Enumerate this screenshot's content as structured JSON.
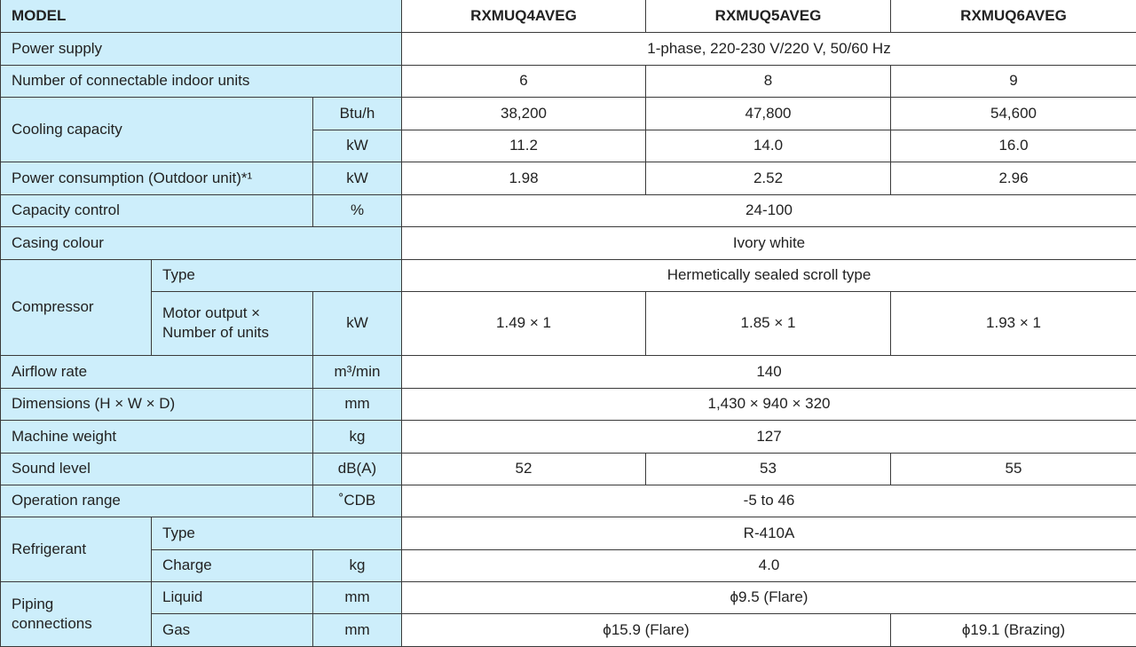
{
  "header": {
    "model": "MODEL",
    "models": [
      "RXMUQ4AVEG",
      "RXMUQ5AVEG",
      "RXMUQ6AVEG"
    ]
  },
  "rows": {
    "power_supply": {
      "label": "Power supply",
      "value": "1-phase, 220-230 V/220 V, 50/60 Hz"
    },
    "indoor_units": {
      "label": "Number of connectable indoor units",
      "values": [
        "6",
        "8",
        "9"
      ]
    },
    "cooling": {
      "label": "Cooling capacity",
      "unit_btu": "Btu/h",
      "btu": [
        "38,200",
        "47,800",
        "54,600"
      ],
      "unit_kw": "kW",
      "kw": [
        "11.2",
        "14.0",
        "16.0"
      ]
    },
    "power_consumption": {
      "label": "Power consumption (Outdoor unit)*¹",
      "unit": "kW",
      "values": [
        "1.98",
        "2.52",
        "2.96"
      ]
    },
    "capacity_control": {
      "label": "Capacity control",
      "unit": "%",
      "value": "24-100"
    },
    "casing": {
      "label": "Casing colour",
      "value": "Ivory white"
    },
    "compressor": {
      "label": "Compressor",
      "type_label": "Type",
      "type_value": "Hermetically sealed scroll type",
      "motor_label_1": "Motor output ×",
      "motor_label_2": "Number of units",
      "motor_unit": "kW",
      "motor_values": [
        "1.49 × 1",
        "1.85 × 1",
        "1.93 × 1"
      ]
    },
    "airflow": {
      "label": "Airflow rate",
      "unit": "m³/min",
      "value": "140"
    },
    "dimensions": {
      "label": "Dimensions (H × W × D)",
      "unit": "mm",
      "value": "1,430 × 940 × 320"
    },
    "weight": {
      "label": "Machine weight",
      "unit": "kg",
      "value": "127"
    },
    "sound": {
      "label": "Sound level",
      "unit": "dB(A)",
      "values": [
        "52",
        "53",
        "55"
      ]
    },
    "operation": {
      "label": "Operation range",
      "unit": "˚CDB",
      "value": "-5 to 46"
    },
    "refrigerant": {
      "label": "Refrigerant",
      "type_label": "Type",
      "type_value": "R-410A",
      "charge_label": "Charge",
      "charge_unit": "kg",
      "charge_value": "4.0"
    },
    "piping": {
      "label_1": "Piping",
      "label_2": "connections",
      "liquid_label": "Liquid",
      "liquid_unit": "mm",
      "liquid_value": "ϕ9.5 (Flare)",
      "gas_label": "Gas",
      "gas_unit": "mm",
      "gas_value_1": "ϕ15.9 (Flare)",
      "gas_value_2": "ϕ19.1 (Brazing)"
    }
  },
  "colors": {
    "label_bg": "#cdeefb",
    "border": "#3a3a3a"
  }
}
